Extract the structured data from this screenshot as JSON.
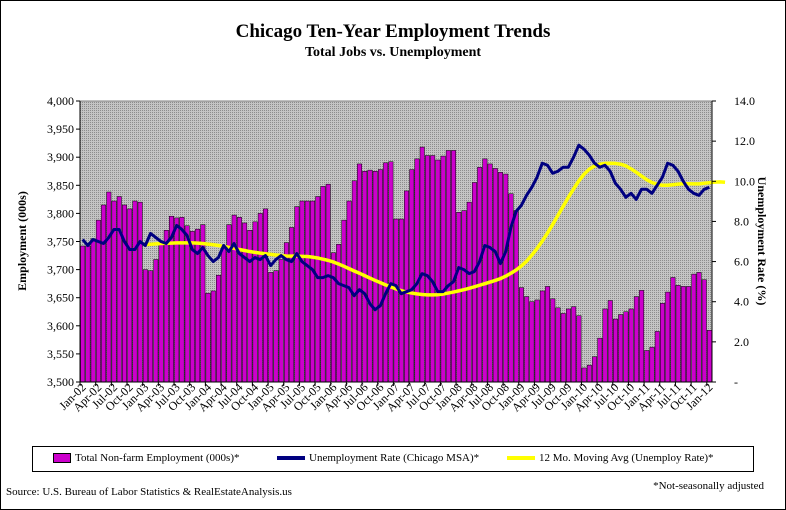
{
  "chart_data": {
    "type": "bar",
    "title": "Chicago Ten-Year Employment Trends",
    "subtitle": "Total Jobs vs. Unemployment",
    "ylabel": "Employment (000s)",
    "y2label": "Unemployment Rate (%)",
    "ylim": [
      3500,
      4000
    ],
    "y2lim": [
      0,
      14
    ],
    "y_ticks": [
      "3,500",
      "3,550",
      "3,600",
      "3,650",
      "3,700",
      "3,750",
      "3,800",
      "3,850",
      "3,900",
      "3,950",
      "4,000"
    ],
    "y2_ticks": [
      "-",
      "2.0",
      "4.0",
      "6.0",
      "8.0",
      "10.0",
      "12.0",
      "14.0"
    ],
    "x_tick_labels": [
      "Jan-02",
      "Apr-02",
      "Jul-02",
      "Oct-02",
      "Jan-03",
      "Apr-03",
      "Jul-03",
      "Oct-03",
      "Jan-04",
      "Apr-04",
      "Jul-04",
      "Oct-04",
      "Jan-05",
      "Apr-05",
      "Jul-05",
      "Oct-05",
      "Jan-06",
      "Apr-06",
      "Jul-06",
      "Oct-06",
      "Jan-07",
      "Apr-07",
      "Jul-07",
      "Oct-07",
      "Jan-08",
      "Apr-08",
      "Jul-08",
      "Oct-08",
      "Jan-09",
      "Apr-09",
      "Jul-09",
      "Oct-09",
      "Jan-10",
      "Apr-10",
      "Jul-10",
      "Oct-10",
      "Jan-11",
      "Apr-11",
      "Jul-11",
      "Oct-11",
      "Jan-12"
    ],
    "grid": false,
    "legend_position": "bottom",
    "series": [
      {
        "name": "Total Non-farm Employment (000s)*",
        "type": "bar",
        "axis": "left",
        "color": "#cc00cc",
        "values": [
          3742,
          3742,
          3755,
          3788,
          3815,
          3838,
          3822,
          3830,
          3815,
          3808,
          3822,
          3820,
          3700,
          3698,
          3718,
          3745,
          3770,
          3795,
          3792,
          3793,
          3778,
          3768,
          3772,
          3780,
          3658,
          3662,
          3690,
          3740,
          3780,
          3797,
          3793,
          3783,
          3770,
          3785,
          3800,
          3808,
          3695,
          3698,
          3718,
          3748,
          3775,
          3812,
          3822,
          3822,
          3822,
          3830,
          3848,
          3852,
          3730,
          3745,
          3788,
          3822,
          3858,
          3888,
          3875,
          3877,
          3875,
          3878,
          3890,
          3892,
          3790,
          3790,
          3840,
          3878,
          3897,
          3918,
          3903,
          3903,
          3895,
          3902,
          3912,
          3912,
          3802,
          3805,
          3820,
          3855,
          3882,
          3897,
          3888,
          3880,
          3873,
          3870,
          3835,
          3805,
          3668,
          3652,
          3643,
          3646,
          3662,
          3670,
          3648,
          3632,
          3622,
          3630,
          3634,
          3618,
          3525,
          3530,
          3545,
          3578,
          3630,
          3645,
          3612,
          3620,
          3625,
          3630,
          3652,
          3663,
          3556,
          3562,
          3590,
          3640,
          3660,
          3686,
          3672,
          3670,
          3670,
          3692,
          3695,
          3682,
          3592
        ]
      },
      {
        "name": "Unemployment Rate (Chicago MSA)*",
        "type": "line",
        "axis": "right",
        "color": "#000080",
        "values": [
          7.1,
          6.8,
          7.1,
          7.0,
          6.9,
          7.2,
          7.6,
          7.6,
          7.0,
          6.6,
          6.6,
          7.0,
          6.8,
          7.4,
          7.2,
          7.0,
          6.9,
          7.2,
          7.8,
          7.6,
          7.3,
          6.6,
          6.4,
          6.7,
          6.3,
          6.0,
          6.2,
          6.8,
          6.5,
          6.9,
          6.4,
          6.2,
          6.0,
          6.2,
          6.1,
          6.3,
          5.8,
          6.1,
          6.3,
          6.1,
          6.0,
          6.4,
          6.0,
          5.8,
          5.6,
          5.2,
          5.2,
          5.3,
          5.2,
          4.9,
          4.8,
          4.7,
          4.3,
          4.6,
          4.4,
          3.9,
          3.6,
          3.8,
          4.4,
          4.9,
          4.8,
          4.4,
          4.5,
          4.6,
          4.9,
          5.4,
          5.3,
          5.0,
          4.5,
          4.5,
          4.8,
          5.0,
          5.7,
          5.6,
          5.4,
          5.5,
          6.0,
          6.8,
          6.7,
          6.5,
          5.9,
          6.5,
          7.7,
          8.5,
          8.8,
          9.3,
          9.7,
          10.2,
          10.9,
          10.8,
          10.4,
          10.5,
          10.7,
          10.7,
          11.2,
          11.8,
          11.6,
          11.3,
          10.9,
          10.7,
          10.8,
          10.5,
          9.9,
          9.6,
          9.2,
          9.4,
          9.1,
          9.6,
          9.6,
          9.4,
          9.8,
          10.2,
          10.9,
          10.8,
          10.5,
          10.0,
          9.6,
          9.4,
          9.3,
          9.6,
          9.7
        ]
      },
      {
        "name": "12 Mo. Moving Avg (Unemploy Rate)*",
        "type": "line",
        "axis": "right",
        "color": "#ffff00",
        "start_index": 12,
        "values": [
          6.85,
          6.86,
          6.88,
          6.9,
          6.91,
          6.92,
          6.93,
          6.93,
          6.93,
          6.93,
          6.92,
          6.9,
          6.87,
          6.84,
          6.8,
          6.76,
          6.71,
          6.66,
          6.6,
          6.55,
          6.5,
          6.46,
          6.42,
          6.39,
          6.36,
          6.33,
          6.3,
          6.28,
          6.27,
          6.27,
          6.26,
          6.25,
          6.22,
          6.18,
          6.12,
          6.06,
          5.98,
          5.88,
          5.77,
          5.65,
          5.53,
          5.42,
          5.3,
          5.18,
          5.06,
          4.95,
          4.84,
          4.74,
          4.64,
          4.55,
          4.48,
          4.43,
          4.39,
          4.36,
          4.34,
          4.34,
          4.35,
          4.38,
          4.43,
          4.48,
          4.54,
          4.6,
          4.67,
          4.74,
          4.82,
          4.9,
          4.98,
          5.06,
          5.15,
          5.27,
          5.42,
          5.58,
          5.78,
          6.02,
          6.32,
          6.65,
          7.02,
          7.42,
          7.85,
          8.3,
          8.75,
          9.2,
          9.62,
          10.02,
          10.35,
          10.6,
          10.76,
          10.85,
          10.89,
          10.9,
          10.89,
          10.85,
          10.77,
          10.62,
          10.45,
          10.26,
          10.08,
          9.94,
          9.85,
          9.8,
          9.8,
          9.83,
          9.86,
          9.88,
          9.88,
          9.87,
          9.87,
          9.9,
          9.93,
          9.96,
          9.97,
          9.95
        ]
      }
    ]
  },
  "footer": {
    "source": "Source: U.S. Bureau of Labor Statistics & RealEstateAnalysis.us",
    "footnote": "*Not-seasonally adjusted"
  }
}
